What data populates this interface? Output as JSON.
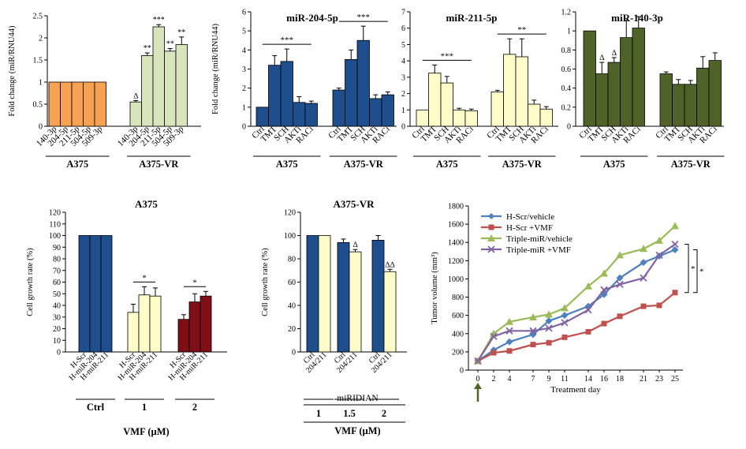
{
  "chart_data": [
    {
      "id": "p1",
      "type": "bar",
      "title": "",
      "ylabel": "Fold change (miR/RNU44)",
      "ylim": [
        0,
        2.5
      ],
      "yticks": [
        "0",
        "0.5",
        "1",
        "1.5",
        "2",
        "2.5"
      ],
      "groups": [
        {
          "label": "A375",
          "categories": [
            "140-3p",
            "204-5p",
            "211-5p",
            "504-5p",
            "509-3p"
          ],
          "values": [
            1,
            1,
            1,
            1,
            1
          ],
          "errors": [
            0,
            0,
            0,
            0,
            0
          ],
          "marks": [
            "",
            "",
            "",
            "",
            ""
          ],
          "color": "#f7a253"
        },
        {
          "label": "A375-VR",
          "categories": [
            "140-3p",
            "204-5p",
            "211-5p",
            "504-5p",
            "509-3p"
          ],
          "values": [
            0.55,
            1.6,
            2.25,
            1.7,
            1.85
          ],
          "errors": [
            0.03,
            0.06,
            0.05,
            0.06,
            0.17
          ],
          "marks": [
            "∆",
            "**",
            "***",
            "**",
            "**"
          ],
          "color": "#d8e4bc"
        }
      ]
    },
    {
      "id": "p2",
      "type": "bar",
      "title": "miR-204-5p",
      "ylabel": "Fold change (miR/RNU44)",
      "ylim": [
        0,
        6
      ],
      "yticks": [
        "0",
        "1",
        "2",
        "3",
        "4",
        "5",
        "6"
      ],
      "groups": [
        {
          "label": "A375",
          "categories": [
            "Ctrl",
            "TMT",
            "SCH",
            "AKTi",
            "RACi"
          ],
          "values": [
            1,
            3.2,
            3.4,
            1.25,
            1.2
          ],
          "errors": [
            0,
            0.5,
            0.65,
            0.3,
            0.12
          ],
          "color": "#1f4e8c"
        },
        {
          "label": "A375-VR",
          "categories": [
            "Ctrl",
            "TMT",
            "SCH",
            "AKTi",
            "RACi"
          ],
          "values": [
            1.9,
            3.5,
            4.5,
            1.45,
            1.65
          ],
          "errors": [
            0.1,
            0.5,
            0.75,
            0.2,
            0.15
          ],
          "color": "#1f4e8c"
        }
      ],
      "brackets": [
        {
          "text": "***",
          "group": 0
        },
        {
          "text": "***",
          "group": 1
        }
      ]
    },
    {
      "id": "p3",
      "type": "bar",
      "title": "miR-211-5p",
      "ylabel": "",
      "ylim": [
        0,
        7
      ],
      "yticks": [
        "0",
        "1",
        "2",
        "3",
        "4",
        "5",
        "6",
        "7"
      ],
      "groups": [
        {
          "label": "A375",
          "categories": [
            "Ctrl",
            "TMT",
            "SCH",
            "AKTi",
            "RACi"
          ],
          "values": [
            1,
            3.25,
            2.65,
            1,
            0.95
          ],
          "errors": [
            0,
            0.5,
            0.4,
            0.1,
            0.1
          ],
          "color": "#fefcc8"
        },
        {
          "label": "A375-VR",
          "categories": [
            "Ctrl",
            "TMT",
            "SCH",
            "AKTi",
            "RACi"
          ],
          "values": [
            2.1,
            4.4,
            4.25,
            1.35,
            1.05
          ],
          "errors": [
            0.1,
            0.95,
            1.1,
            0.25,
            0.15
          ],
          "color": "#fefcc8"
        }
      ],
      "brackets": [
        {
          "text": "***",
          "group": 0
        },
        {
          "text": "**",
          "group": 1
        }
      ]
    },
    {
      "id": "p4",
      "type": "bar",
      "title": "miR-140-3p",
      "ylabel": "",
      "ylim": [
        0,
        1.2
      ],
      "yticks": [
        "0",
        "0.2",
        "0.4",
        "0.6",
        "0.8",
        "1",
        "1.2"
      ],
      "groups": [
        {
          "label": "A375",
          "categories": [
            "Ctrl",
            "TMT",
            "SCH",
            "AKTi",
            "RACi"
          ],
          "values": [
            1,
            0.55,
            0.67,
            0.93,
            1.03
          ],
          "errors": [
            0,
            0.12,
            0.05,
            0.18,
            0.12
          ],
          "marks": [
            "",
            "∆",
            "∆",
            "",
            ""
          ],
          "color": "#4f6228"
        },
        {
          "label": "A375-VR",
          "categories": [
            "Ctrl",
            "TMT",
            "SCH",
            "AKTi",
            "RACi"
          ],
          "values": [
            0.55,
            0.44,
            0.44,
            0.61,
            0.69
          ],
          "errors": [
            0.02,
            0.05,
            0.04,
            0.12,
            0.08
          ],
          "marks": [
            "",
            "",
            "",
            "",
            ""
          ],
          "color": "#4f6228"
        }
      ]
    },
    {
      "id": "p5",
      "type": "bar",
      "title": "A375",
      "ylabel": "Cell growth rate (%)",
      "ylim": [
        0,
        120
      ],
      "yticks": [
        "0",
        "10",
        "20",
        "30",
        "40",
        "50",
        "60",
        "70",
        "80",
        "90",
        "100",
        "110",
        "120"
      ],
      "groups": [
        {
          "label": "Ctrl",
          "categories": [
            "H-Scr",
            "H-miR-204",
            "H-miR-211"
          ],
          "values": [
            100,
            100,
            100
          ],
          "errors": [
            0,
            0,
            0
          ],
          "colors": [
            "#1f4e8c",
            "#1f4e8c",
            "#1f4e8c"
          ]
        },
        {
          "label": "1",
          "categories": [
            "H-Scr",
            "H-miR-204",
            "H-miR-211"
          ],
          "values": [
            34,
            49,
            48
          ],
          "errors": [
            7,
            7,
            7
          ],
          "colors": [
            "#fefcc8",
            "#fefcc8",
            "#fefcc8"
          ]
        },
        {
          "label": "2",
          "categories": [
            "H-Scr",
            "H-miR-204",
            "H-miR-211"
          ],
          "values": [
            28,
            43,
            48
          ],
          "errors": [
            4,
            7,
            4
          ],
          "colors": [
            "#7f0f16",
            "#7f0f16",
            "#7f0f16"
          ]
        }
      ],
      "brackets": [
        {
          "text": "*",
          "group": 1
        },
        {
          "text": "*",
          "group": 2
        }
      ],
      "footer": "VMF (µM)"
    },
    {
      "id": "p6",
      "type": "bar",
      "title": "A375-VR",
      "ylabel": "Cell growth rate (%)",
      "ylim": [
        0,
        120
      ],
      "yticks": [
        "0",
        "20",
        "40",
        "60",
        "80",
        "100",
        "120"
      ],
      "groups": [
        {
          "label": "1",
          "categories": [
            "Ctrl",
            "204/211"
          ],
          "values": [
            100,
            100
          ],
          "errors": [
            0,
            0
          ],
          "marks": [
            "",
            ""
          ],
          "colors": [
            "#1f4e8c",
            "#fefcc8"
          ]
        },
        {
          "label": "1.5",
          "categories": [
            "Ctrl",
            "204/211"
          ],
          "values": [
            94,
            86
          ],
          "errors": [
            3,
            2
          ],
          "marks": [
            "",
            "∆"
          ],
          "colors": [
            "#1f4e8c",
            "#fefcc8"
          ]
        },
        {
          "label": "2",
          "categories": [
            "Ctrl",
            "204/211"
          ],
          "values": [
            96,
            69
          ],
          "errors": [
            4,
            2
          ],
          "marks": [
            "",
            "∆∆"
          ],
          "colors": [
            "#1f4e8c",
            "#fefcc8"
          ]
        }
      ],
      "mid_label": "miRIDIAN",
      "footer": "VMF (µM)"
    },
    {
      "id": "p7",
      "type": "line",
      "title": "",
      "xlabel": "Treatment day",
      "ylabel": "Tumor volume (mm³)",
      "ylim": [
        0,
        1800
      ],
      "yticks": [
        "0",
        "200",
        "400",
        "600",
        "800",
        "1000",
        "1200",
        "1400",
        "1600",
        "1800"
      ],
      "x": [
        0,
        2,
        4,
        7,
        9,
        11,
        14,
        16,
        18,
        21,
        23,
        25
      ],
      "series": [
        {
          "name": "H-Scr/vehicle",
          "color": "#4f81bd",
          "marker": "diamond",
          "values": [
            100,
            220,
            310,
            390,
            540,
            600,
            700,
            830,
            1010,
            1180,
            1250,
            1320
          ]
        },
        {
          "name": "H-Scr +VMF",
          "color": "#c0504d",
          "marker": "square",
          "values": [
            100,
            190,
            210,
            280,
            300,
            360,
            420,
            510,
            590,
            700,
            710,
            850
          ]
        },
        {
          "name": "Triple-miR/vehicle",
          "color": "#9bbb59",
          "marker": "triangle",
          "values": [
            100,
            400,
            530,
            580,
            610,
            680,
            920,
            1060,
            1260,
            1330,
            1420,
            1580
          ]
        },
        {
          "name": "Triple-miR +VMF",
          "color": "#8064a2",
          "marker": "x",
          "values": [
            100,
            370,
            430,
            430,
            460,
            520,
            660,
            880,
            940,
            1010,
            1260,
            1380
          ]
        }
      ],
      "sig": [
        "*",
        "*"
      ],
      "start_arrow": true
    }
  ]
}
